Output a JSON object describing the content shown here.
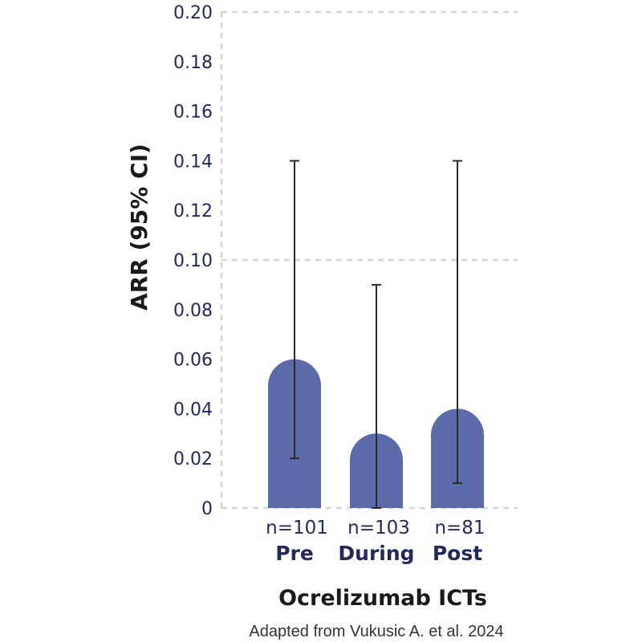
{
  "chart_data": {
    "type": "bar",
    "title": "",
    "ylabel": "ARR (95% CI)",
    "xlabel": "Ocrelizumab ICTs",
    "ylim": [
      0,
      0.2
    ],
    "yticks": [
      "0",
      "0.02",
      "0.04",
      "0.06",
      "0.08",
      "0.10",
      "0.12",
      "0.14",
      "0.16",
      "0.18",
      "0.20"
    ],
    "ytick_values": [
      0,
      0.02,
      0.04,
      0.06,
      0.08,
      0.1,
      0.12,
      0.14,
      0.16,
      0.18,
      0.2
    ],
    "gridlines_at": [
      0,
      0.1,
      0.2
    ],
    "categories": [
      "Pre",
      "During",
      "Post"
    ],
    "n_labels": [
      "n=101",
      "n=103",
      "n=81"
    ],
    "values": [
      0.06,
      0.03,
      0.04
    ],
    "ci_low": [
      0.02,
      0.0,
      0.01
    ],
    "ci_high": [
      0.14,
      0.09,
      0.14
    ],
    "source": "Adapted from Vukusic A. et al. 2024"
  },
  "colors": {
    "bar": "#5e6bab",
    "error_bar": "#2a2a2a",
    "grid": "#d4d4d4",
    "tick_text": "#24295c"
  }
}
